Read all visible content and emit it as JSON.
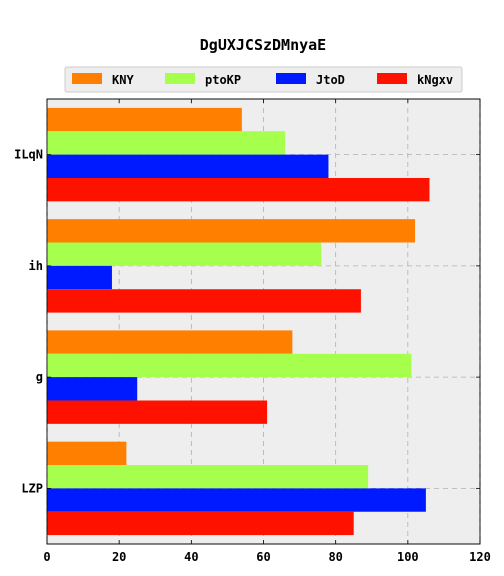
{
  "chart_data": {
    "type": "bar",
    "orientation": "horizontal",
    "title": "DgUXJCSzDMnyaE",
    "xlabel": "",
    "ylabel": "",
    "xlim": [
      0,
      120
    ],
    "xticks": [
      0,
      20,
      40,
      60,
      80,
      100,
      120
    ],
    "grid": true,
    "legend_position": "top",
    "categories": [
      "ILqN",
      "ih",
      "g",
      "LZP"
    ],
    "series": [
      {
        "name": "KNY",
        "color": "#ff7f00",
        "values": [
          54,
          102,
          68,
          22
        ]
      },
      {
        "name": "ptoKP",
        "color": "#a6ff4d",
        "values": [
          66,
          76,
          101,
          89
        ]
      },
      {
        "name": "JtoD",
        "color": "#001aff",
        "values": [
          78,
          18,
          25,
          105
        ]
      },
      {
        "name": "kNgxv",
        "color": "#ff1100",
        "values": [
          106,
          87,
          61,
          85
        ]
      }
    ]
  }
}
